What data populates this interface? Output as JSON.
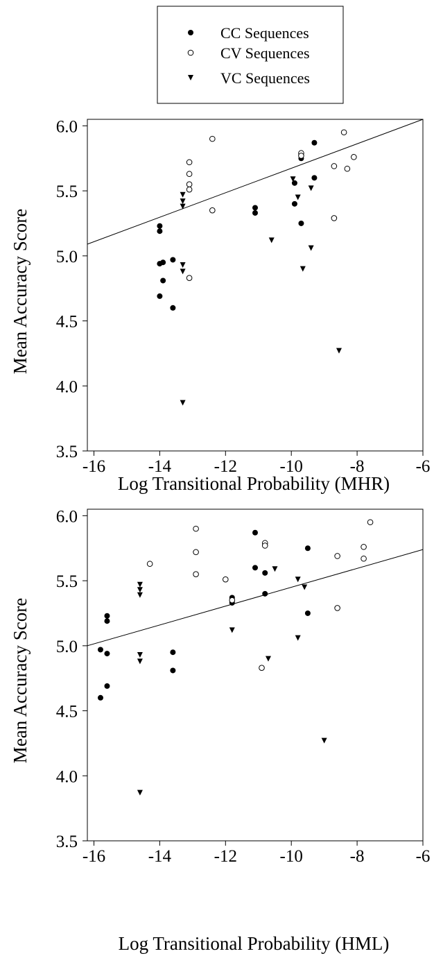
{
  "legend": {
    "entries": [
      {
        "label": "CC Sequences",
        "marker": "filled-circle"
      },
      {
        "label": "CV Sequences",
        "marker": "open-circle"
      },
      {
        "label": "VC Sequences",
        "marker": "filled-triangle-down"
      }
    ]
  },
  "chart_data": [
    {
      "type": "scatter",
      "xlabel": "Log Transitional Probability (MHR)",
      "ylabel": "Mean Accuracy Score",
      "xlim": [
        -16.2,
        -6
      ],
      "ylim": [
        3.5,
        6.05
      ],
      "xticks": [
        -16,
        -14,
        -12,
        -10,
        -8,
        -6
      ],
      "yticks": [
        3.5,
        4.0,
        4.5,
        5.0,
        5.5,
        6.0
      ],
      "ytick_labels": [
        "3.5",
        "4.0",
        "4.5",
        "5.0",
        "5.5",
        "6.0"
      ],
      "grid": false,
      "series": [
        {
          "name": "CC Sequences",
          "marker": "filled-circle",
          "points": [
            [
              -14.0,
              5.23
            ],
            [
              -14.0,
              5.19
            ],
            [
              -14.0,
              4.94
            ],
            [
              -13.9,
              4.95
            ],
            [
              -13.6,
              4.97
            ],
            [
              -13.9,
              4.81
            ],
            [
              -14.0,
              4.69
            ],
            [
              -13.6,
              4.6
            ],
            [
              -11.1,
              5.37
            ],
            [
              -11.1,
              5.33
            ],
            [
              -9.3,
              5.87
            ],
            [
              -9.7,
              5.75
            ],
            [
              -9.9,
              5.56
            ],
            [
              -9.3,
              5.6
            ],
            [
              -9.9,
              5.4
            ],
            [
              -9.7,
              5.25
            ]
          ]
        },
        {
          "name": "CV Sequences",
          "marker": "open-circle",
          "points": [
            [
              -12.4,
              5.9
            ],
            [
              -13.1,
              5.72
            ],
            [
              -13.1,
              5.63
            ],
            [
              -13.1,
              5.55
            ],
            [
              -13.1,
              5.51
            ],
            [
              -12.4,
              5.35
            ],
            [
              -13.1,
              4.83
            ],
            [
              -9.7,
              5.79
            ],
            [
              -9.7,
              5.77
            ],
            [
              -8.4,
              5.95
            ],
            [
              -8.1,
              5.76
            ],
            [
              -8.7,
              5.69
            ],
            [
              -8.3,
              5.67
            ],
            [
              -8.7,
              5.29
            ]
          ]
        },
        {
          "name": "VC Sequences",
          "marker": "filled-triangle-down",
          "points": [
            [
              -13.3,
              5.47
            ],
            [
              -13.3,
              5.42
            ],
            [
              -13.3,
              5.38
            ],
            [
              -13.3,
              4.93
            ],
            [
              -13.3,
              4.88
            ],
            [
              -13.3,
              3.87
            ],
            [
              -10.6,
              5.12
            ],
            [
              -9.95,
              5.59
            ],
            [
              -9.8,
              5.45
            ],
            [
              -9.4,
              5.52
            ],
            [
              -9.4,
              5.06
            ],
            [
              -9.65,
              4.9
            ],
            [
              -8.55,
              4.27
            ]
          ]
        }
      ],
      "fit_line": {
        "x": [
          -16.2,
          -6
        ],
        "y": [
          5.09,
          6.05
        ]
      }
    },
    {
      "type": "scatter",
      "xlabel": "Log Transitional Probability (HML)",
      "ylabel": "Mean Accuracy Score",
      "xlim": [
        -16.2,
        -6
      ],
      "ylim": [
        3.5,
        6.05
      ],
      "xticks": [
        -16,
        -14,
        -12,
        -10,
        -8,
        -6
      ],
      "yticks": [
        3.5,
        4.0,
        4.5,
        5.0,
        5.5,
        6.0
      ],
      "ytick_labels": [
        "3.5",
        "4.0",
        "4.5",
        "5.0",
        "5.5",
        "6.0"
      ],
      "grid": false,
      "series": [
        {
          "name": "CC Sequences",
          "marker": "filled-circle",
          "points": [
            [
              -15.6,
              5.23
            ],
            [
              -15.6,
              5.19
            ],
            [
              -15.8,
              4.97
            ],
            [
              -15.6,
              4.94
            ],
            [
              -15.6,
              4.69
            ],
            [
              -15.8,
              4.6
            ],
            [
              -13.6,
              4.95
            ],
            [
              -13.6,
              4.81
            ],
            [
              -11.8,
              5.37
            ],
            [
              -11.8,
              5.33
            ],
            [
              -11.1,
              5.87
            ],
            [
              -11.1,
              5.6
            ],
            [
              -10.8,
              5.56
            ],
            [
              -10.8,
              5.4
            ],
            [
              -9.5,
              5.75
            ],
            [
              -9.5,
              5.25
            ]
          ]
        },
        {
          "name": "CV Sequences",
          "marker": "open-circle",
          "points": [
            [
              -12.9,
              5.9
            ],
            [
              -12.9,
              5.72
            ],
            [
              -12.9,
              5.55
            ],
            [
              -14.3,
              5.63
            ],
            [
              -12.0,
              5.51
            ],
            [
              -11.8,
              5.35
            ],
            [
              -10.8,
              5.79
            ],
            [
              -10.8,
              5.77
            ],
            [
              -10.9,
              4.83
            ],
            [
              -7.6,
              5.95
            ],
            [
              -7.8,
              5.76
            ],
            [
              -8.6,
              5.69
            ],
            [
              -7.8,
              5.67
            ],
            [
              -8.6,
              5.29
            ]
          ]
        },
        {
          "name": "VC Sequences",
          "marker": "filled-triangle-down",
          "points": [
            [
              -14.6,
              5.47
            ],
            [
              -14.6,
              5.43
            ],
            [
              -14.6,
              5.39
            ],
            [
              -14.6,
              4.93
            ],
            [
              -14.6,
              4.88
            ],
            [
              -14.6,
              3.87
            ],
            [
              -11.8,
              5.12
            ],
            [
              -10.5,
              5.59
            ],
            [
              -9.8,
              5.51
            ],
            [
              -9.6,
              5.45
            ],
            [
              -9.8,
              5.06
            ],
            [
              -10.7,
              4.9
            ],
            [
              -9.0,
              4.27
            ]
          ]
        }
      ],
      "fit_line": {
        "x": [
          -16.2,
          -6
        ],
        "y": [
          5.0,
          5.74
        ]
      }
    }
  ]
}
